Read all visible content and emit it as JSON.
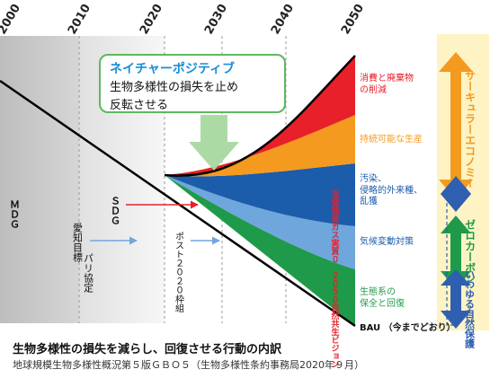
{
  "years": [
    "2000",
    "2010",
    "2020",
    "2030",
    "2040",
    "2050"
  ],
  "callout": {
    "title": "ネイチャーポジティブ",
    "line1": "生物多様性の損失を止め",
    "line2": "反転させる"
  },
  "left_labels": {
    "mdg": "ＭＤＧ",
    "aichi": "愛知目標",
    "pari": "パリ協定",
    "sdg": "ＳＤＧ",
    "post2020": "ポスト２０２０枠組"
  },
  "band_labels": {
    "consumption": "消費と廃棄物\nの削減",
    "sustainable": "持続可能な生産",
    "pollution": "汚染、\n侵略的外来種、\n乱獲",
    "climate": "気候変動対策",
    "ecosystem": "生態系の\n保全と回復",
    "bau": "BAU （今までどおり）"
  },
  "vertical_note": "温室効果ガス実質０　２０５０自然共生ビジョン",
  "right_panel": {
    "circular": "サーキュラーエコノミー",
    "zero_carbon": "ゼロカーボン",
    "nature": "いわゆる自然保護"
  },
  "caption": {
    "title": "生物多様性の損失を減らし、回復させる行動の内訳",
    "subtitle": "地球規模生物多様性概況第５版ＧＢＯ５（生物多様性条約事務局2020年９月）"
  },
  "colors": {
    "red": "#e8202a",
    "orange": "#f39a1f",
    "darkblue": "#1b5cab",
    "lightblue": "#6fa6dc",
    "green": "#1f9a4a",
    "callout_border": "#5fb85f",
    "callout_title": "#1a8ed8",
    "panel_bg": "#fdf3c4"
  }
}
